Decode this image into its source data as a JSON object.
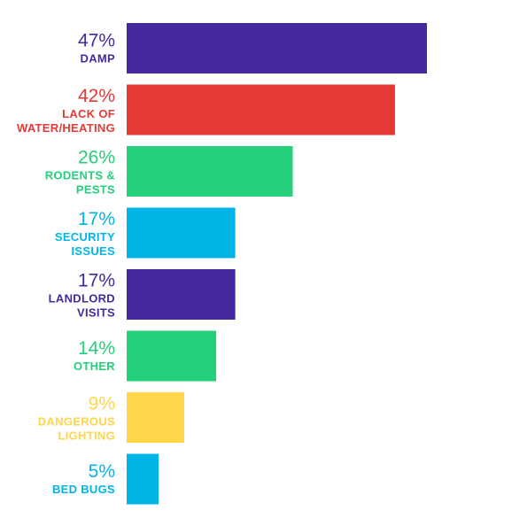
{
  "chart_data": {
    "type": "bar",
    "orientation": "horizontal",
    "unit": "%",
    "xlim": [
      0,
      50
    ],
    "grid": false,
    "legend": "none",
    "categories": [
      {
        "lines": [
          "DAMP"
        ]
      },
      {
        "lines": [
          "LACK OF",
          "WATER/HEATING"
        ]
      },
      {
        "lines": [
          "RODENTS &",
          "PESTS"
        ]
      },
      {
        "lines": [
          "SECURITY",
          "ISSUES"
        ]
      },
      {
        "lines": [
          "LANDLORD",
          "VISITS"
        ]
      },
      {
        "lines": [
          "OTHER"
        ]
      },
      {
        "lines": [
          "DANGEROUS",
          "LIGHTING"
        ]
      },
      {
        "lines": [
          "BED BUGS"
        ]
      }
    ],
    "values": [
      47,
      42,
      26,
      17,
      17,
      14,
      9,
      5
    ],
    "value_labels": [
      "47%",
      "42%",
      "26%",
      "17%",
      "17%",
      "14%",
      "9%",
      "5%"
    ],
    "colors": [
      "#45299f",
      "#e53935",
      "#24d07a",
      "#00b4e6",
      "#45299f",
      "#24d07a",
      "#ffd54a",
      "#00b4e6"
    ]
  }
}
